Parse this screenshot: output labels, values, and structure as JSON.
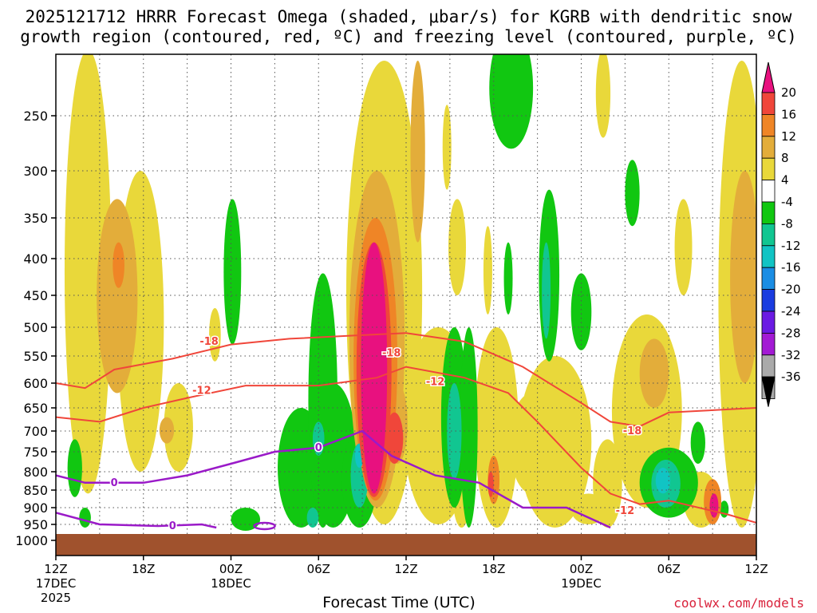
{
  "chart_data": {
    "type": "heatmap",
    "title_line1": "2025121712 HRRR Forecast Omega (shaded, μbar/s) for KGRB with dendritic snow",
    "title_line2": "growth region (contoured, red, ºC) and freezing level (contoured, purple, ºC)",
    "xlabel": "Forecast Time (UTC)",
    "x_ticks": [
      {
        "label": "12Z",
        "sub1": "17DEC",
        "sub2": "2025",
        "hour": 0
      },
      {
        "label": "18Z",
        "sub1": "",
        "sub2": "",
        "hour": 6
      },
      {
        "label": "00Z",
        "sub1": "18DEC",
        "sub2": "",
        "hour": 12
      },
      {
        "label": "06Z",
        "sub1": "",
        "sub2": "",
        "hour": 18
      },
      {
        "label": "12Z",
        "sub1": "",
        "sub2": "",
        "hour": 24
      },
      {
        "label": "18Z",
        "sub1": "",
        "sub2": "",
        "hour": 30
      },
      {
        "label": "00Z",
        "sub1": "19DEC",
        "sub2": "",
        "hour": 36
      },
      {
        "label": "06Z",
        "sub1": "",
        "sub2": "",
        "hour": 42
      },
      {
        "label": "12Z",
        "sub1": "",
        "sub2": "",
        "hour": 48
      }
    ],
    "x_range_hours": [
      0,
      48
    ],
    "y_ticks": [
      250,
      300,
      350,
      400,
      450,
      500,
      550,
      600,
      650,
      700,
      750,
      800,
      850,
      900,
      950,
      1000
    ],
    "y_unit": "hPa",
    "y_range": [
      200,
      1040
    ],
    "colorbar": {
      "labels": [
        "20",
        "16",
        "12",
        "8",
        "4",
        "-4",
        "-8",
        "-12",
        "-16",
        "-20",
        "-24",
        "-28",
        "-32",
        "-36"
      ],
      "colors": [
        "#e8117f",
        "#f0463a",
        "#ef8526",
        "#e3ad3a",
        "#e9d83a",
        "#ffffff",
        "#11c711",
        "#11c691",
        "#11c4c4",
        "#1a8de4",
        "#1a3ce0",
        "#6b1ae3",
        "#a31ad4",
        "#aaaaaa"
      ],
      "top_color": "#e8117f",
      "bottom_color": "#000000"
    },
    "red_contours": [
      {
        "label": "-18",
        "points": [
          [
            0,
            600
          ],
          [
            2,
            610
          ],
          [
            4,
            575
          ],
          [
            8,
            555
          ],
          [
            12,
            530
          ],
          [
            16,
            520
          ],
          [
            20,
            515
          ],
          [
            24,
            510
          ],
          [
            28,
            525
          ],
          [
            32,
            570
          ],
          [
            36,
            640
          ],
          [
            38,
            680
          ],
          [
            40,
            690
          ],
          [
            42,
            660
          ],
          [
            48,
            650
          ]
        ]
      },
      {
        "label": "-12",
        "points": [
          [
            0,
            670
          ],
          [
            3,
            680
          ],
          [
            6,
            650
          ],
          [
            9,
            630
          ],
          [
            13,
            605
          ],
          [
            18,
            605
          ],
          [
            22,
            590
          ],
          [
            24,
            570
          ],
          [
            28,
            590
          ],
          [
            31,
            620
          ],
          [
            33,
            680
          ],
          [
            36,
            790
          ],
          [
            38,
            860
          ],
          [
            40,
            890
          ],
          [
            42,
            880
          ],
          [
            46,
            920
          ],
          [
            48,
            945
          ]
        ]
      }
    ],
    "purple_contours": [
      {
        "label": "0",
        "points": [
          [
            0,
            810
          ],
          [
            2,
            830
          ],
          [
            6,
            830
          ],
          [
            9,
            810
          ],
          [
            12,
            780
          ],
          [
            15,
            750
          ],
          [
            18,
            740
          ],
          [
            21,
            700
          ],
          [
            23,
            760
          ],
          [
            26,
            810
          ],
          [
            29,
            830
          ],
          [
            32,
            900
          ],
          [
            35,
            900
          ],
          [
            38,
            960
          ]
        ]
      },
      {
        "label": "0",
        "points": [
          [
            0,
            915
          ],
          [
            3,
            950
          ],
          [
            7,
            955
          ],
          [
            10,
            950
          ],
          [
            11,
            960
          ]
        ]
      }
    ],
    "omega_regions": [
      {
        "value": 4,
        "hour": 2,
        "p_top": 200,
        "p_bot": 850
      },
      {
        "value": 8,
        "hour": 4,
        "p_top": 370,
        "p_bot": 560
      },
      {
        "value": 20,
        "hour": 22,
        "p_top": 380,
        "p_bot": 860
      },
      {
        "value": -8,
        "hour": 18,
        "p_top": 420,
        "p_bot": 960
      },
      {
        "value": -8,
        "hour": 31,
        "p_top": 80,
        "p_bot": 280
      },
      {
        "value": 8,
        "hour": 47,
        "p_top": 280,
        "p_bot": 650
      }
    ],
    "ground_pressure": 980
  },
  "credit": "coolwx.com/models"
}
